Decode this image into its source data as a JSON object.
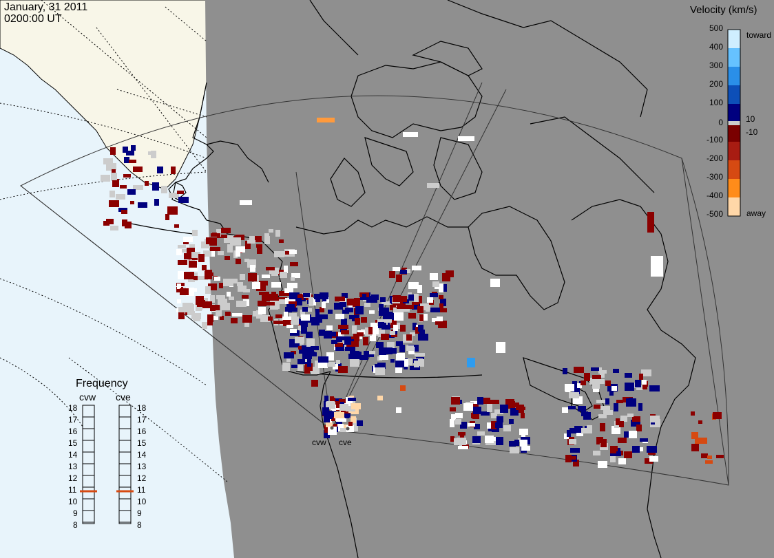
{
  "header": {
    "date": "January, 31 2011",
    "time": "0200:00 UT"
  },
  "velocity_scale": {
    "title": "Velocity (km/s)",
    "ticks": [
      "500",
      "400",
      "300",
      "200",
      "100",
      "10",
      "0",
      "-10",
      "-100",
      "-200",
      "-300",
      "-400",
      "-500"
    ],
    "toward_label": "toward",
    "away_label": "away",
    "colors": {
      "toward_strong": "#bfe8ff",
      "toward_mid": "#2e9cf0",
      "toward_low": "#00007f",
      "zero": "#cccccc",
      "away_low": "#8b0000",
      "away_mid": "#d94a0a",
      "away_strong": "#ffd7a8"
    }
  },
  "frequency_panel": {
    "title": "Frequency",
    "radars": [
      {
        "name": "cvw",
        "frequency_mhz": 11
      },
      {
        "name": "cve",
        "frequency_mhz": 11
      }
    ],
    "scale_min": 8,
    "scale_max": 18,
    "scale_labels": [
      "18",
      "17",
      "16",
      "15",
      "14",
      "13",
      "12",
      "11",
      "10",
      "9",
      "8"
    ]
  },
  "sites": [
    {
      "name": "cvw"
    },
    {
      "name": "cve"
    }
  ],
  "colors": {
    "background_ocean": "#e8f4fb",
    "night_shade": "#8f8f8f",
    "land_day": "#f8f6e8",
    "coastline": "#000000",
    "marker": "#d64a12"
  }
}
